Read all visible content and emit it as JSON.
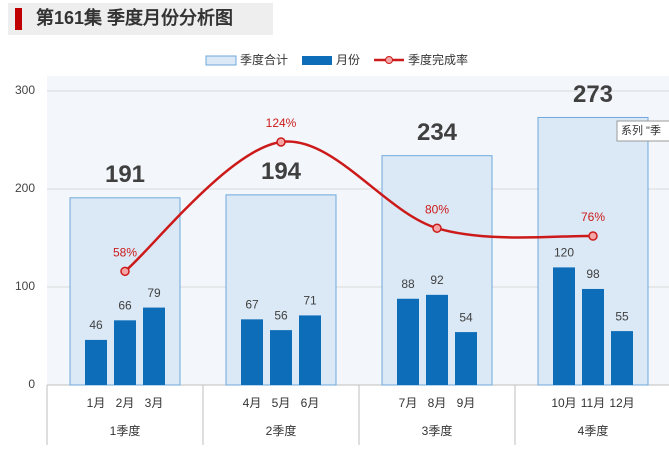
{
  "chart_data": {
    "type": "combo",
    "title": "第161集 季度月份分析图",
    "categories": [
      "1季度",
      "2季度",
      "3季度",
      "4季度"
    ],
    "subcategories": [
      [
        "1月",
        "2月",
        "3月"
      ],
      [
        "4月",
        "5月",
        "6月"
      ],
      [
        "7月",
        "8月",
        "9月"
      ],
      [
        "10月",
        "11月",
        "12月"
      ]
    ],
    "series": [
      {
        "name": "季度合计",
        "type": "box",
        "color": "#dbe9f6",
        "values": [
          191,
          194,
          234,
          273
        ]
      },
      {
        "name": "月份",
        "type": "bar",
        "color": "#0e6db8",
        "values": [
          [
            46,
            66,
            79
          ],
          [
            67,
            56,
            71
          ],
          [
            88,
            92,
            54
          ],
          [
            120,
            98,
            55
          ]
        ]
      },
      {
        "name": "季度完成率",
        "type": "line",
        "color": "#cc1a1a",
        "axis": "y2",
        "values": [
          58,
          124,
          80,
          76
        ],
        "value_labels": [
          "58%",
          "124%",
          "80%",
          "76%"
        ]
      }
    ],
    "ylim": [
      0,
      300
    ],
    "yticks": [
      0,
      100,
      200,
      300
    ],
    "y2lim": [
      0,
      150
    ],
    "grid": true,
    "legend": "top",
    "tooltip": "系列 \"季"
  }
}
